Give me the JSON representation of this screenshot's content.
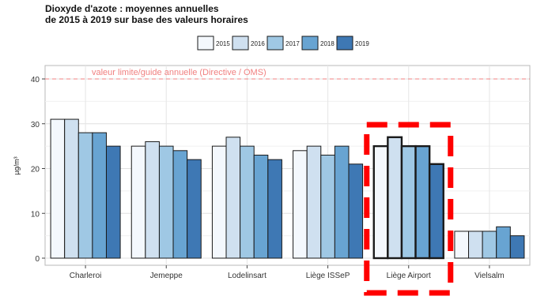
{
  "chart_data": {
    "type": "bar",
    "title_line1": "Dioxyde d'azote : moyennes annuelles",
    "title_line2": "de 2015 à 2019 sur base des valeurs horaires",
    "ylabel": "µg/m³",
    "xlabel": "",
    "ylim": [
      0,
      42
    ],
    "yticks": [
      0,
      10,
      20,
      30,
      40
    ],
    "grid": true,
    "legend_position": "top-center",
    "categories": [
      "Charleroi",
      "Jemeppe",
      "Lodelinsart",
      "Liège ISSeP",
      "Liège Airport",
      "Vielsalm"
    ],
    "series": [
      {
        "name": "2015",
        "color": "#f4f8fd",
        "values": [
          31,
          25,
          25,
          24,
          25,
          6
        ]
      },
      {
        "name": "2016",
        "color": "#cfe0f0",
        "values": [
          31,
          26,
          27,
          25,
          27,
          6
        ]
      },
      {
        "name": "2017",
        "color": "#9fc8e4",
        "values": [
          28,
          25,
          25,
          23,
          25,
          6
        ]
      },
      {
        "name": "2018",
        "color": "#68a4d2",
        "values": [
          28,
          24,
          23,
          25,
          25,
          7
        ]
      },
      {
        "name": "2019",
        "color": "#3e78b4",
        "values": [
          25,
          22,
          22,
          21,
          21,
          5
        ]
      }
    ],
    "reference_line": {
      "value": 40,
      "label": "valeur limite/guide annuelle (Directive / OMS)",
      "color": "#f08080"
    },
    "highlighted_category": "Liège Airport",
    "highlight_color": "#ff0000"
  }
}
